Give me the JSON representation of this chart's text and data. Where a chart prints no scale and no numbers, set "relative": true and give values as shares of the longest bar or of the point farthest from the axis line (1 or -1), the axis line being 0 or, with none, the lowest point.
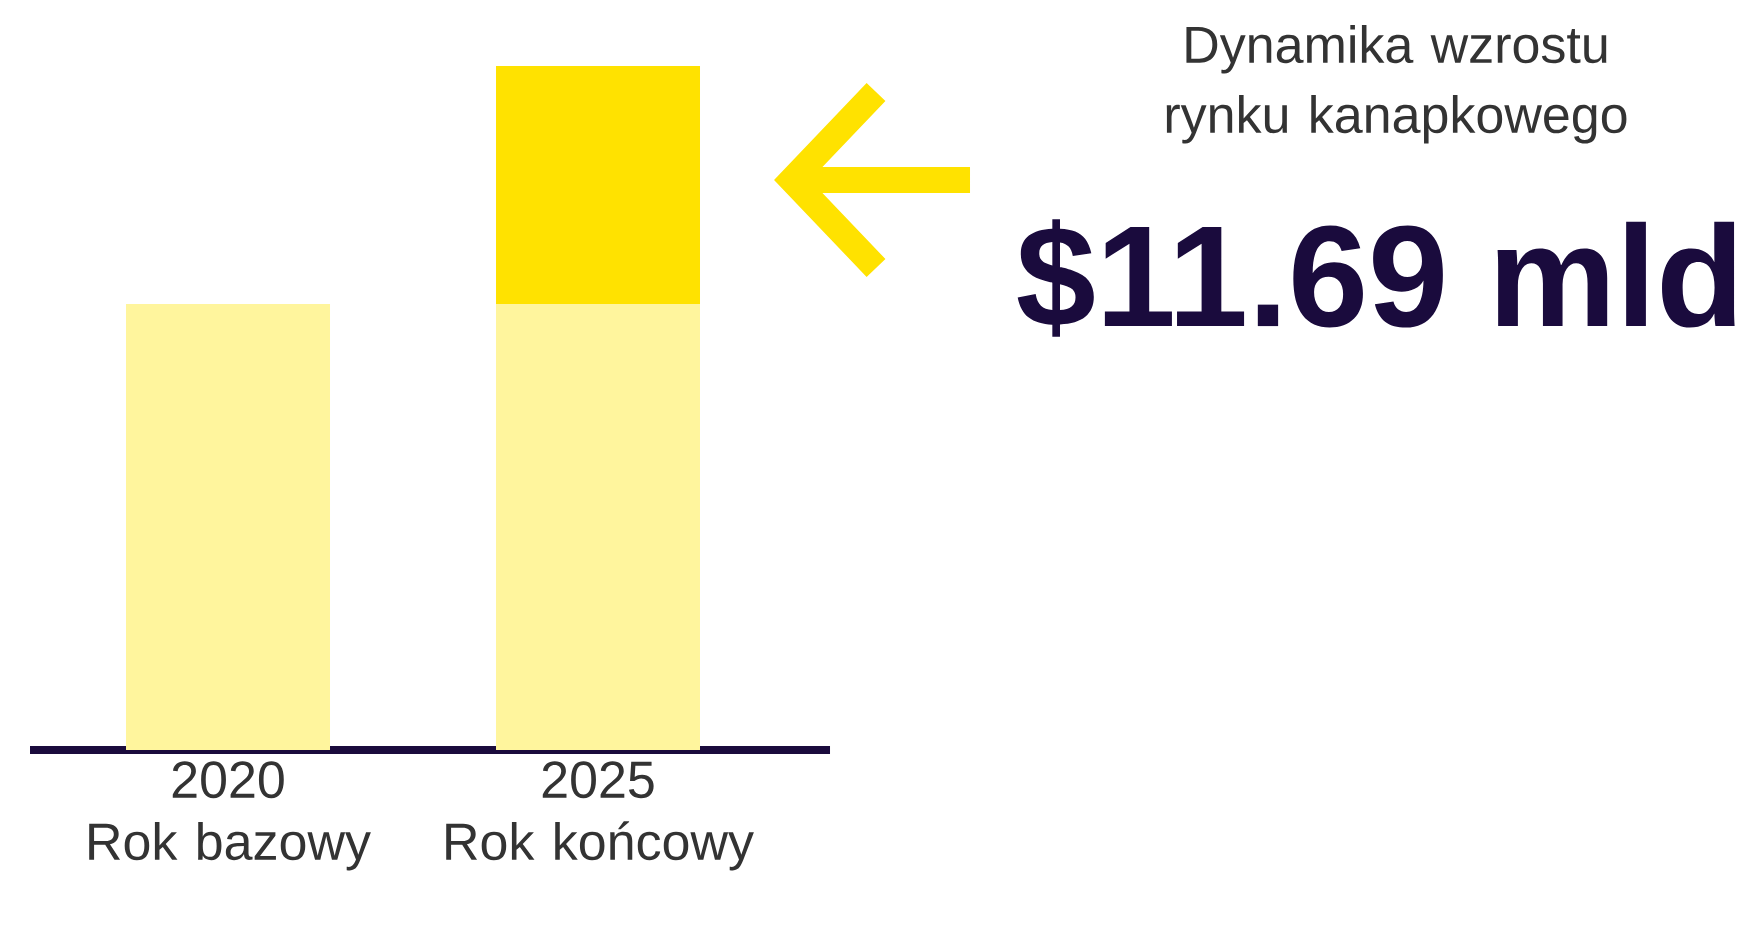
{
  "chart_data": {
    "type": "bar",
    "stacked": true,
    "relative": true,
    "title": "Dynamika wzrostu rynku kanapkowego",
    "annotations": [
      "$11.69 mld"
    ],
    "categories": [
      "2020 Rok bazowy",
      "2025 Rok końcowy"
    ],
    "series": [
      {
        "color": "#fff59d",
        "values": [
          0.652,
          0.652
        ]
      },
      {
        "color": "#ffe200",
        "values": [
          null,
          0.348
        ]
      }
    ]
  }
}
